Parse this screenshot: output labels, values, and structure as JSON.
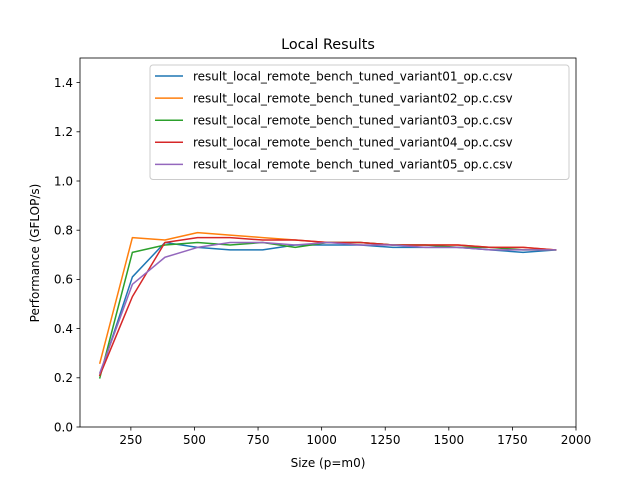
{
  "chart_data": {
    "type": "line",
    "title": "Local Results",
    "xlabel": "Size (p=m0)",
    "ylabel": "Performance (GFLOP/s)",
    "xlim": [
      50,
      2000
    ],
    "ylim": [
      0.0,
      1.5
    ],
    "xticks": [
      250,
      500,
      750,
      1000,
      1250,
      1500,
      1750,
      2000
    ],
    "yticks": [
      0.0,
      0.2,
      0.4,
      0.6,
      0.8,
      1.0,
      1.2,
      1.4
    ],
    "xtick_labels": [
      "250",
      "500",
      "750",
      "1000",
      "1250",
      "1500",
      "1750",
      "2000"
    ],
    "ytick_labels": [
      "0.0",
      "0.2",
      "0.4",
      "0.6",
      "0.8",
      "1.0",
      "1.2",
      "1.4"
    ],
    "grid": false,
    "legend_position": "top-right",
    "x": [
      128,
      256,
      384,
      512,
      640,
      768,
      896,
      1024,
      1152,
      1280,
      1408,
      1536,
      1664,
      1792,
      1920
    ],
    "series": [
      {
        "name": "result_local_remote_bench_tuned_variant01_op.c.csv",
        "color": "#1f77b4",
        "values": [
          0.21,
          0.61,
          0.75,
          0.73,
          0.72,
          0.72,
          0.74,
          0.74,
          0.74,
          0.73,
          0.73,
          0.73,
          0.72,
          0.71,
          0.72
        ]
      },
      {
        "name": "result_local_remote_bench_tuned_variant02_op.c.csv",
        "color": "#ff7f0e",
        "values": [
          0.26,
          0.77,
          0.76,
          0.79,
          0.78,
          0.77,
          0.76,
          0.75,
          0.75,
          0.74,
          0.74,
          0.74,
          0.73,
          0.73,
          0.72
        ]
      },
      {
        "name": "result_local_remote_bench_tuned_variant03_op.c.csv",
        "color": "#2ca02c",
        "values": [
          0.2,
          0.71,
          0.74,
          0.75,
          0.74,
          0.75,
          0.73,
          0.75,
          0.75,
          0.74,
          0.74,
          0.73,
          0.73,
          0.72,
          0.72
        ]
      },
      {
        "name": "result_local_remote_bench_tuned_variant04_op.c.csv",
        "color": "#d62728",
        "values": [
          0.21,
          0.53,
          0.75,
          0.77,
          0.77,
          0.76,
          0.76,
          0.75,
          0.75,
          0.74,
          0.74,
          0.74,
          0.73,
          0.73,
          0.72
        ]
      },
      {
        "name": "result_local_remote_bench_tuned_variant05_op.c.csv",
        "color": "#9467bd",
        "values": [
          0.22,
          0.58,
          0.69,
          0.73,
          0.75,
          0.75,
          0.74,
          0.75,
          0.74,
          0.74,
          0.73,
          0.73,
          0.72,
          0.72,
          0.72
        ]
      }
    ]
  }
}
